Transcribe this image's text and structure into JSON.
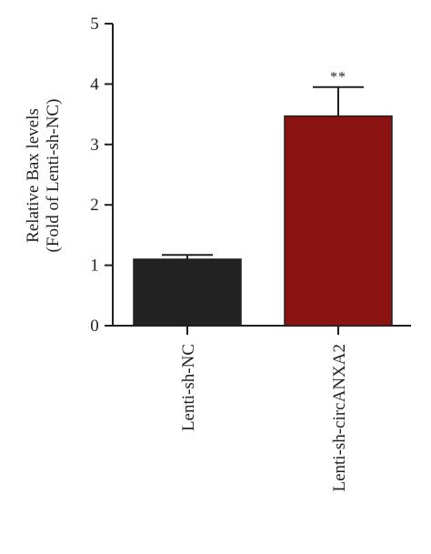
{
  "chart_data": {
    "type": "bar",
    "categories": [
      "Lenti-sh-NC",
      "Lenti-sh-circANXA2"
    ],
    "values": [
      1.1,
      3.47
    ],
    "errors": [
      0.07,
      0.48
    ],
    "colors": [
      "#222222",
      "#8a1210"
    ],
    "annotations": [
      "",
      "**"
    ],
    "ylabel_line1": "Relative Bax levels",
    "ylabel_line2": "(Fold of Lenti-sh-NC)",
    "ylim": [
      0,
      5
    ],
    "yticks": [
      0,
      1,
      2,
      3,
      4,
      5
    ],
    "grid": false
  }
}
